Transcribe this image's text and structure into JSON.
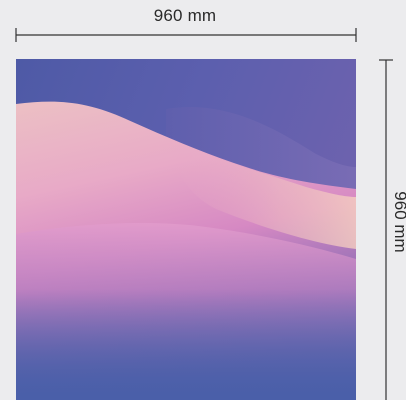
{
  "dimensions": {
    "width_label": "960 mm",
    "height_label": "960 mm"
  },
  "artwork": {
    "description_colors": {
      "top": "#5358a8",
      "mid_pink": "#e7a7c9",
      "peach": "#f0c4c4",
      "violet": "#a56bb9",
      "bottom": "#4b5fa9"
    }
  },
  "background_color": "#ececee"
}
